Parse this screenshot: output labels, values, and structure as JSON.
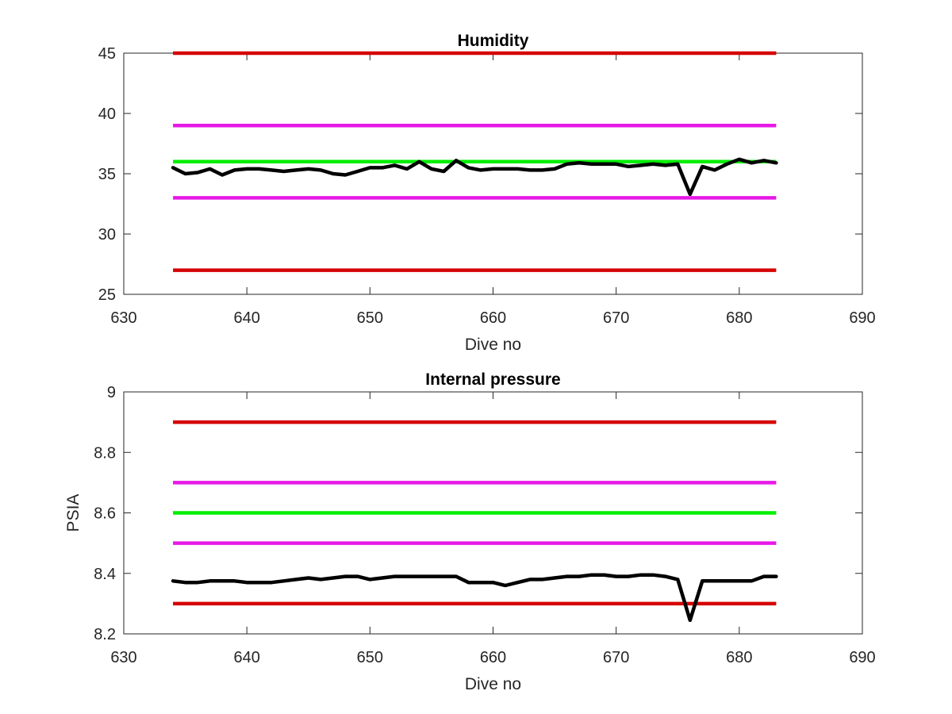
{
  "chart_data": [
    {
      "type": "line",
      "title": "Humidity",
      "xlabel": "Dive no",
      "ylabel": "",
      "xlim": [
        630,
        690
      ],
      "ylim": [
        25,
        45
      ],
      "xticks": [
        630,
        640,
        650,
        660,
        670,
        680,
        690
      ],
      "yticks": [
        25,
        30,
        35,
        40,
        45
      ],
      "xtick_labels": [
        "630",
        "640",
        "650",
        "660",
        "670",
        "680",
        "690"
      ],
      "ytick_labels": [
        "25",
        "30",
        "35",
        "40",
        "45"
      ],
      "grid": false,
      "reference_lines": [
        {
          "y": 45,
          "x": [
            634,
            683
          ],
          "color": "#d40000"
        },
        {
          "y": 39,
          "x": [
            634,
            683
          ],
          "color": "#e619e6"
        },
        {
          "y": 36,
          "x": [
            634,
            683
          ],
          "color": "#00ee00"
        },
        {
          "y": 33,
          "x": [
            634,
            683
          ],
          "color": "#e619e6"
        },
        {
          "y": 27,
          "x": [
            634,
            683
          ],
          "color": "#d40000"
        }
      ],
      "series": [
        {
          "color": "#000000",
          "x": [
            634,
            635,
            636,
            637,
            638,
            639,
            640,
            641,
            642,
            643,
            644,
            645,
            646,
            647,
            648,
            649,
            650,
            651,
            652,
            653,
            654,
            655,
            656,
            657,
            658,
            659,
            660,
            661,
            662,
            663,
            664,
            665,
            666,
            667,
            668,
            669,
            670,
            671,
            672,
            673,
            674,
            675,
            676,
            677,
            678,
            679,
            680,
            681,
            682,
            683
          ],
          "y": [
            35.5,
            35.0,
            35.1,
            35.4,
            34.9,
            35.3,
            35.4,
            35.4,
            35.3,
            35.2,
            35.3,
            35.4,
            35.3,
            35.0,
            34.9,
            35.2,
            35.5,
            35.5,
            35.7,
            35.4,
            36.0,
            35.4,
            35.2,
            36.1,
            35.5,
            35.3,
            35.4,
            35.4,
            35.4,
            35.3,
            35.3,
            35.4,
            35.8,
            35.9,
            35.8,
            35.8,
            35.8,
            35.6,
            35.7,
            35.8,
            35.7,
            35.8,
            33.3,
            35.6,
            35.3,
            35.8,
            36.2,
            35.9,
            36.1,
            35.9
          ]
        }
      ]
    },
    {
      "type": "line",
      "title": "Internal pressure",
      "xlabel": "Dive no",
      "ylabel": "PSIA",
      "xlim": [
        630,
        690
      ],
      "ylim": [
        8.2,
        9.0
      ],
      "xticks": [
        630,
        640,
        650,
        660,
        670,
        680,
        690
      ],
      "yticks": [
        8.2,
        8.4,
        8.6,
        8.8,
        9.0
      ],
      "xtick_labels": [
        "630",
        "640",
        "650",
        "660",
        "670",
        "680",
        "690"
      ],
      "ytick_labels": [
        "8.2",
        "8.4",
        "8.6",
        "8.8",
        "9"
      ],
      "grid": false,
      "reference_lines": [
        {
          "y": 8.9,
          "x": [
            634,
            683
          ],
          "color": "#d40000"
        },
        {
          "y": 8.7,
          "x": [
            634,
            683
          ],
          "color": "#e619e6"
        },
        {
          "y": 8.6,
          "x": [
            634,
            683
          ],
          "color": "#00ee00"
        },
        {
          "y": 8.5,
          "x": [
            634,
            683
          ],
          "color": "#e619e6"
        },
        {
          "y": 8.3,
          "x": [
            634,
            683
          ],
          "color": "#d40000"
        }
      ],
      "series": [
        {
          "color": "#000000",
          "x": [
            634,
            635,
            636,
            637,
            638,
            639,
            640,
            641,
            642,
            643,
            644,
            645,
            646,
            647,
            648,
            649,
            650,
            651,
            652,
            653,
            654,
            655,
            656,
            657,
            658,
            659,
            660,
            661,
            662,
            663,
            664,
            665,
            666,
            667,
            668,
            669,
            670,
            671,
            672,
            673,
            674,
            675,
            676,
            677,
            678,
            679,
            680,
            681,
            682,
            683
          ],
          "y": [
            8.375,
            8.37,
            8.37,
            8.375,
            8.375,
            8.375,
            8.37,
            8.37,
            8.37,
            8.375,
            8.38,
            8.385,
            8.38,
            8.385,
            8.39,
            8.39,
            8.38,
            8.385,
            8.39,
            8.39,
            8.39,
            8.39,
            8.39,
            8.39,
            8.37,
            8.37,
            8.37,
            8.36,
            8.37,
            8.38,
            8.38,
            8.385,
            8.39,
            8.39,
            8.395,
            8.395,
            8.39,
            8.39,
            8.395,
            8.395,
            8.39,
            8.38,
            8.245,
            8.375,
            8.375,
            8.375,
            8.375,
            8.375,
            8.39,
            8.39
          ]
        }
      ]
    }
  ]
}
